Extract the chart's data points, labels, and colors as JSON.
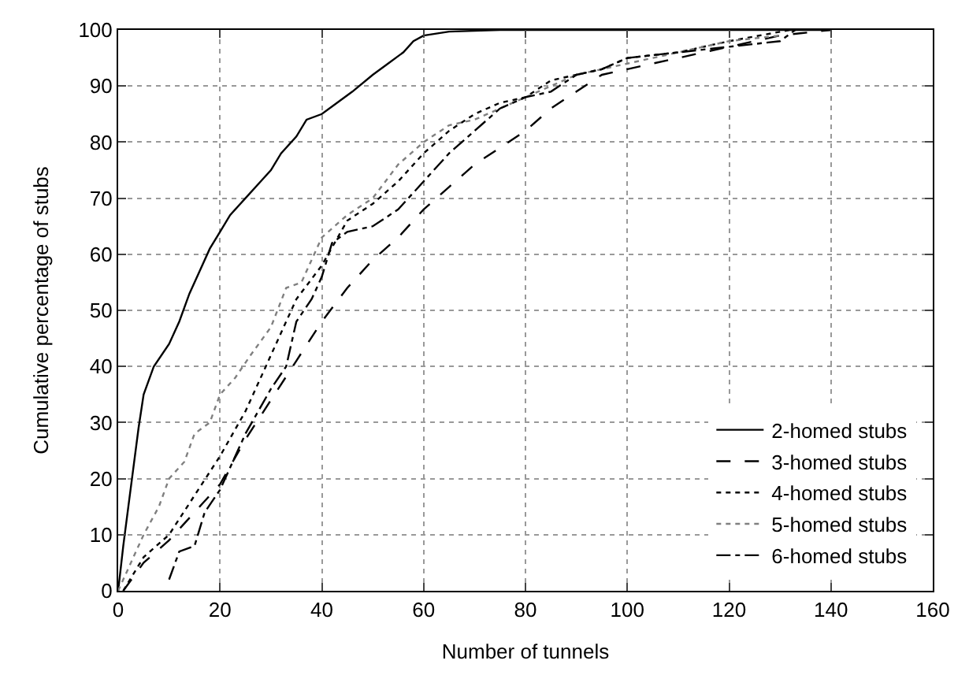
{
  "chart_data": {
    "type": "line",
    "xlabel": "Number of tunnels",
    "ylabel": "Cumulative percentage of stubs",
    "xlim": [
      0,
      160
    ],
    "ylim": [
      0,
      100
    ],
    "xticks": [
      0,
      20,
      40,
      60,
      80,
      100,
      120,
      140,
      160
    ],
    "yticks": [
      0,
      10,
      20,
      30,
      40,
      50,
      60,
      70,
      80,
      90,
      100
    ],
    "grid": true,
    "legend": "bottom right",
    "marker": "none",
    "series": [
      {
        "name": "2-homed stubs",
        "color": "#000000",
        "line_style": "solid",
        "x": [
          0,
          1,
          2,
          3,
          4,
          5,
          7,
          10,
          12,
          14,
          16,
          18,
          20,
          22,
          25,
          28,
          30,
          32,
          35,
          37,
          40,
          43,
          46,
          50,
          53,
          56,
          58,
          60,
          65,
          75,
          140
        ],
        "values": [
          0,
          8,
          15,
          22,
          29,
          35,
          40,
          44,
          48,
          53,
          57,
          61,
          64,
          67,
          70,
          73,
          75,
          78,
          81,
          84,
          85,
          87,
          89,
          92,
          94,
          96,
          98,
          99,
          99.7,
          100,
          100
        ]
      },
      {
        "name": "3-homed stubs",
        "color": "#000000",
        "line_style": "dashed",
        "x": [
          1,
          5,
          10,
          15,
          20,
          25,
          30,
          35,
          40,
          45,
          50,
          55,
          60,
          65,
          70,
          75,
          80,
          85,
          90,
          95,
          100,
          110,
          120,
          130,
          140
        ],
        "values": [
          0,
          5,
          9,
          14,
          19,
          27,
          34,
          41,
          48,
          54,
          59,
          63,
          68,
          72,
          76,
          79,
          82,
          86,
          89,
          92,
          93,
          95,
          97,
          99,
          100
        ]
      },
      {
        "name": "4-homed stubs",
        "color": "#000000",
        "line_style": "dotted",
        "x": [
          1,
          5,
          10,
          15,
          20,
          25,
          30,
          35,
          40,
          45,
          50,
          55,
          60,
          65,
          70,
          75,
          80,
          85,
          90,
          95,
          100,
          110,
          120,
          132
        ],
        "values": [
          0,
          6,
          10,
          17,
          24,
          32,
          42,
          52,
          58,
          66,
          69,
          73,
          78,
          82,
          85,
          87,
          88,
          91,
          92,
          93,
          95,
          96,
          98,
          100
        ]
      },
      {
        "name": "5-homed stubs",
        "color": "#808080",
        "line_style": "dotted",
        "x": [
          0,
          3,
          5,
          8,
          10,
          13,
          15,
          18,
          20,
          23,
          26,
          30,
          33,
          36,
          38,
          40,
          45,
          50,
          55,
          60,
          65,
          70,
          80,
          90,
          100,
          120,
          130
        ],
        "values": [
          0,
          6,
          10,
          15,
          20,
          23,
          28,
          30,
          35,
          38,
          42,
          47,
          54,
          55,
          59,
          63,
          67,
          70,
          76,
          80,
          83,
          84,
          88,
          92,
          94,
          98,
          99
        ]
      },
      {
        "name": "6-homed stubs",
        "color": "#000000",
        "line_style": "dashdot",
        "x": [
          10,
          12,
          15,
          17,
          20,
          25,
          30,
          33,
          35,
          38,
          40,
          42,
          45,
          50,
          55,
          60,
          65,
          70,
          75,
          80,
          85,
          90,
          95,
          100,
          110,
          120,
          130,
          133
        ],
        "values": [
          2,
          7,
          8,
          14,
          18,
          28,
          36,
          40,
          48,
          52,
          56,
          62,
          64,
          65,
          68,
          73,
          78,
          82,
          86,
          88,
          89,
          92,
          93,
          95,
          96,
          97,
          98,
          100
        ]
      }
    ]
  }
}
